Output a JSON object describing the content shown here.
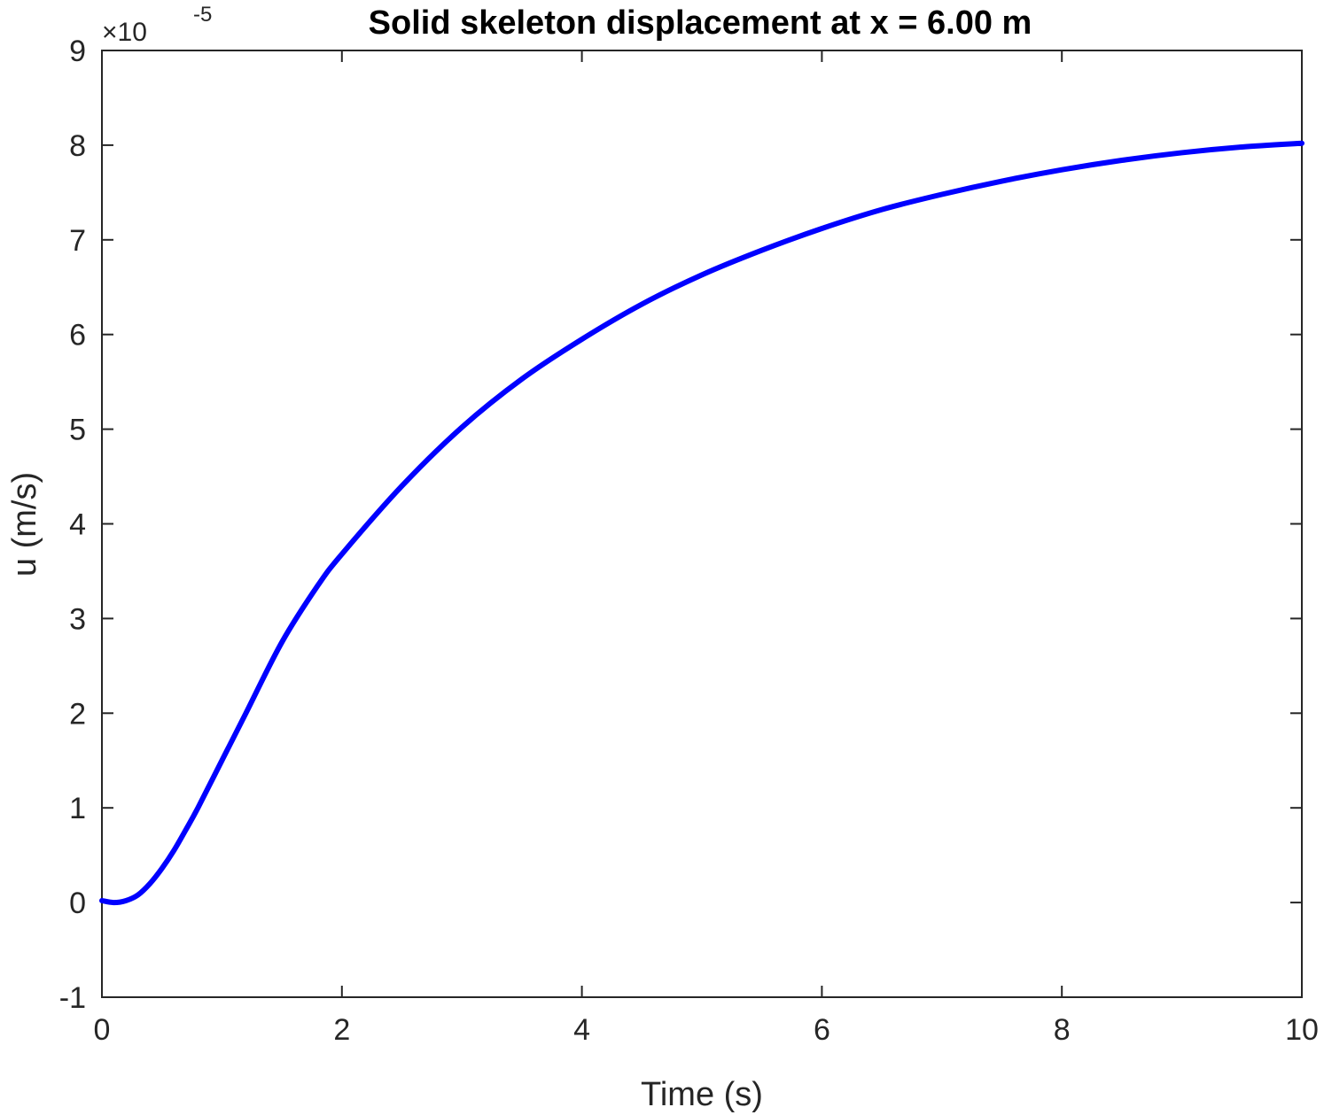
{
  "chart_data": {
    "type": "line",
    "title": "Solid skeleton displacement at x = 6.00 m",
    "xlabel": "Time (s)",
    "ylabel": "u (m/s)",
    "xlim": [
      0,
      10
    ],
    "ylim": [
      -1,
      9
    ],
    "y_scale_exponent": "-5",
    "x_ticks": [
      "0",
      "2",
      "4",
      "6",
      "8",
      "10"
    ],
    "y_ticks": [
      "-1",
      "0",
      "1",
      "2",
      "3",
      "4",
      "5",
      "6",
      "7",
      "8",
      "9"
    ],
    "grid": false,
    "legend": "none",
    "series": [
      {
        "color": "#0000ff",
        "x": [
          0,
          0.1,
          0.2,
          0.3,
          0.4,
          0.5,
          0.6,
          0.7,
          0.8,
          1.0,
          1.2,
          1.5,
          1.8,
          2.0,
          2.5,
          3.0,
          3.5,
          4.0,
          4.5,
          5.0,
          5.5,
          6.0,
          6.5,
          7.0,
          7.5,
          8.0,
          8.5,
          9.0,
          9.5,
          10.0
        ],
        "y": [
          0.02,
          0.0,
          0.02,
          0.08,
          0.2,
          0.36,
          0.55,
          0.77,
          1.0,
          1.5,
          2.0,
          2.75,
          3.35,
          3.68,
          4.4,
          5.02,
          5.53,
          5.95,
          6.32,
          6.63,
          6.89,
          7.12,
          7.32,
          7.48,
          7.62,
          7.74,
          7.84,
          7.92,
          7.98,
          8.02
        ]
      }
    ]
  }
}
